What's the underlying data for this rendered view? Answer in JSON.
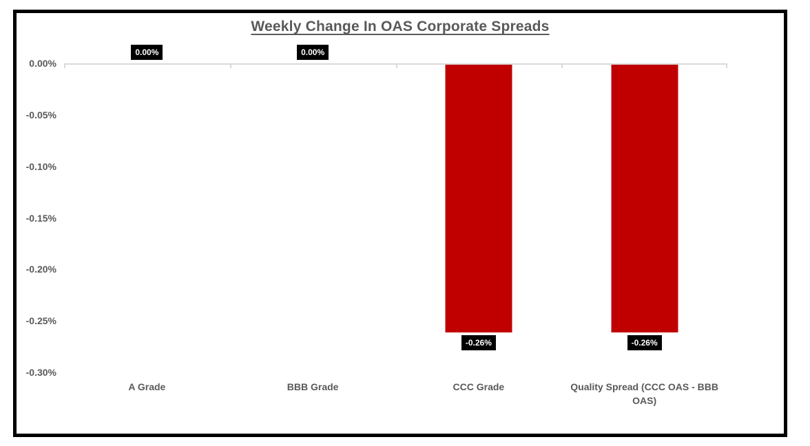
{
  "page": {
    "background": "#FFFFFF",
    "border_color": "#000000"
  },
  "chart_data": {
    "type": "bar",
    "title": "Weekly Change In OAS Corporate Spreads",
    "categories": [
      "A Grade",
      "BBB Grade",
      "CCC Grade",
      "Quality Spread (CCC OAS - BBB OAS)"
    ],
    "values": [
      0.0,
      0.0,
      -0.26,
      -0.26
    ],
    "value_labels": [
      "0.00%",
      "0.00%",
      "-0.26%",
      "-0.26%"
    ],
    "xlabel": "",
    "ylabel": "",
    "ylim": [
      -0.3,
      0.0
    ],
    "ytick_values": [
      0.0,
      -0.05,
      -0.1,
      -0.15,
      -0.2,
      -0.25,
      -0.3
    ],
    "ytick_labels": [
      "0.00%",
      "-0.05%",
      "-0.10%",
      "-0.15%",
      "-0.20%",
      "-0.25%",
      "-0.30%"
    ],
    "grid": false,
    "legend": false,
    "colors": {
      "bar": "#C00000",
      "data_label_background": "#000000",
      "data_label_text": "#FFFFFF",
      "text": "#595959",
      "axis_line": "#D9D9D9"
    }
  }
}
